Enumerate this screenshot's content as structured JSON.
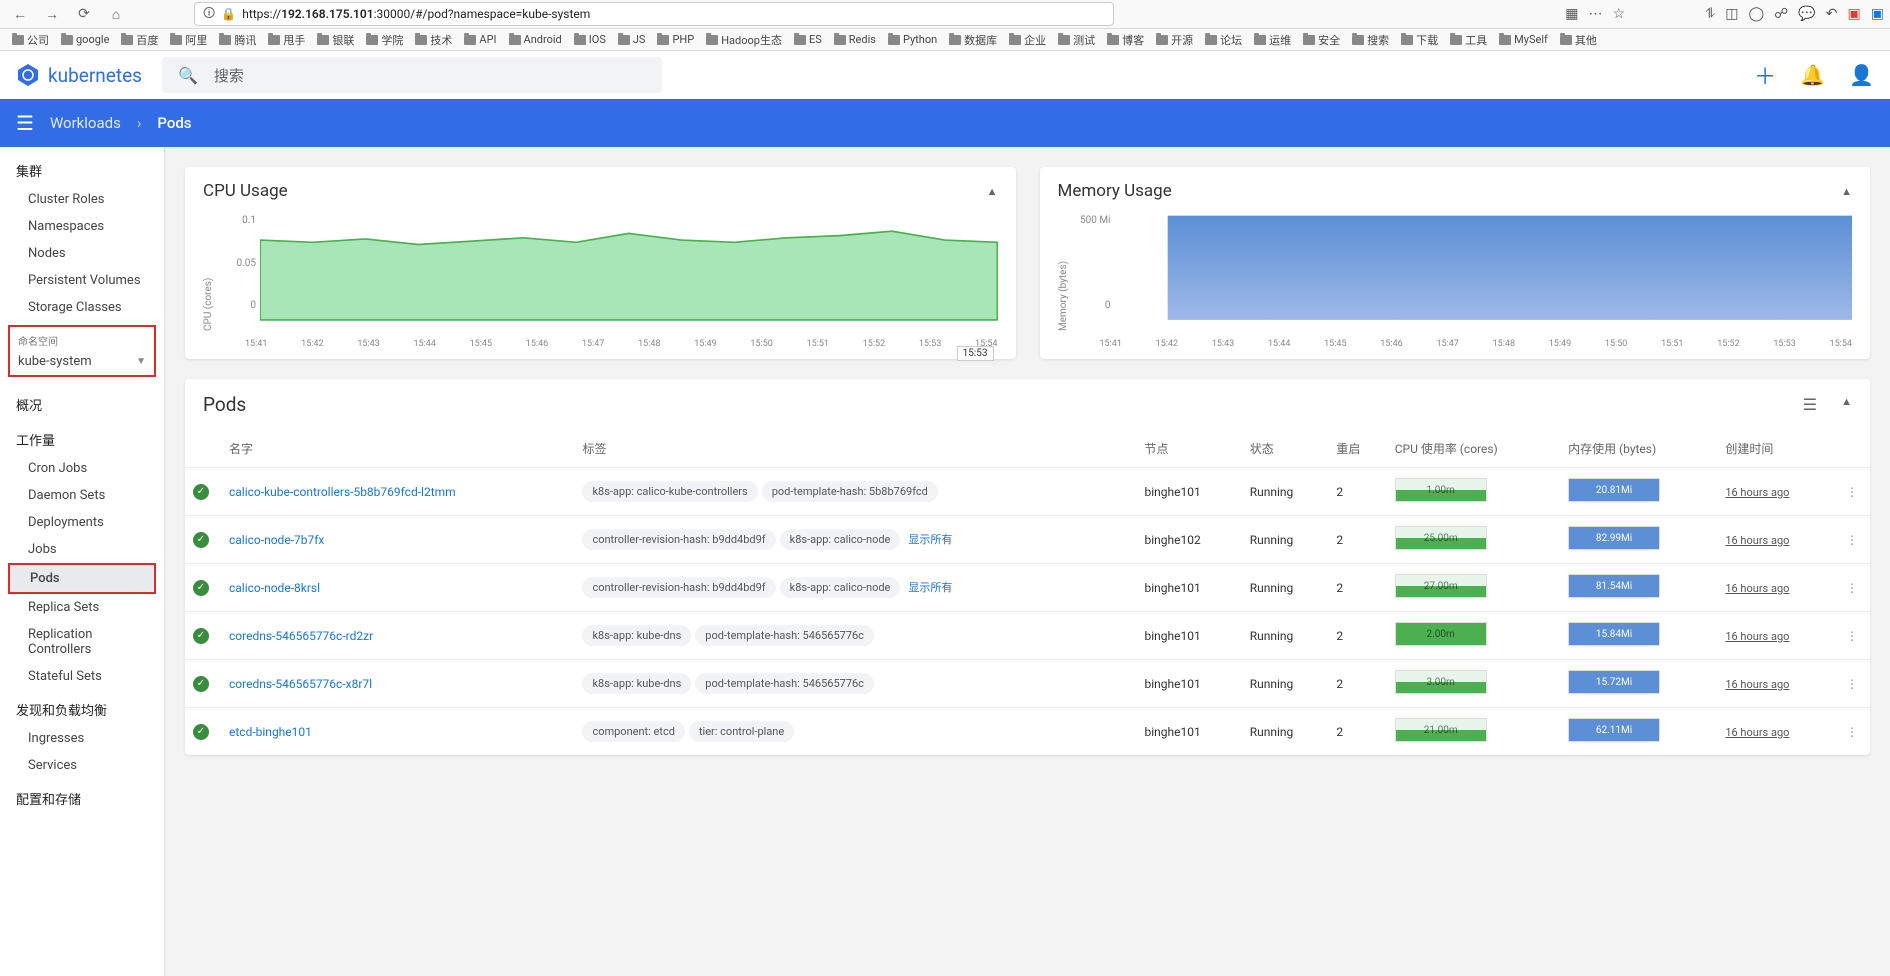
{
  "browser": {
    "url_prefix": "https://",
    "url_host": "192.168.175.101",
    "url_rest": ":30000/#/pod?namespace=kube-system",
    "bookmarks": [
      "公司",
      "google",
      "百度",
      "阿里",
      "腾讯",
      "甩手",
      "银联",
      "学院",
      "技术",
      "API",
      "Android",
      "IOS",
      "JS",
      "PHP",
      "Hadoop生态",
      "ES",
      "Redis",
      "Python",
      "数据库",
      "企业",
      "测试",
      "博客",
      "开源",
      "论坛",
      "运维",
      "安全",
      "搜索",
      "下载",
      "工具",
      "MySelf",
      "其他"
    ]
  },
  "header": {
    "brand": "kubernetes",
    "search_placeholder": "搜索"
  },
  "breadcrumb": {
    "parent": "Workloads",
    "current": "Pods"
  },
  "sidebar": {
    "cluster_header": "集群",
    "cluster_items": [
      "Cluster Roles",
      "Namespaces",
      "Nodes",
      "Persistent Volumes",
      "Storage Classes"
    ],
    "ns_label": "命名空间",
    "ns_value": "kube-system",
    "overview": "概况",
    "workloads_header": "工作量",
    "workloads_items": [
      "Cron Jobs",
      "Daemon Sets",
      "Deployments",
      "Jobs",
      "Pods",
      "Replica Sets",
      "Replication Controllers",
      "Stateful Sets"
    ],
    "discovery_header": "发现和负载均衡",
    "discovery_items": [
      "Ingresses",
      "Services"
    ],
    "config_header": "配置和存储"
  },
  "charts": {
    "cpu": {
      "title": "CPU Usage",
      "y_label": "CPU (cores)",
      "y_ticks": [
        "0.1",
        "0.05",
        "0"
      ],
      "color": "#6fcf97",
      "fill": "#a8e6b8",
      "tooltip": "15:53"
    },
    "mem": {
      "title": "Memory Usage",
      "y_label": "Memory (bytes)",
      "y_ticks": [
        "500 Mi",
        "0"
      ],
      "color": "#6a8fd8",
      "fill": "#8fa9e0"
    },
    "x_ticks": [
      "15:41",
      "15:42",
      "15:43",
      "15:44",
      "15:45",
      "15:46",
      "15:47",
      "15:48",
      "15:49",
      "15:50",
      "15:51",
      "15:52",
      "15:53",
      "15:54"
    ]
  },
  "pods": {
    "title": "Pods",
    "cols": [
      "名字",
      "标签",
      "节点",
      "状态",
      "重启",
      "CPU 使用率 (cores)",
      "内存使用 (bytes)",
      "创建时间"
    ],
    "show_all": "显示所有",
    "rows": [
      {
        "name": "calico-kube-controllers-5b8b769fcd-l2tmm",
        "labels": [
          "k8s-app: calico-kube-controllers",
          "pod-template-hash: 5b8b769fcd"
        ],
        "node": "binghe101",
        "status": "Running",
        "restarts": "2",
        "cpu": "1.00m",
        "cpu_full": false,
        "mem": "20.81Mi",
        "time": "16 hours ago"
      },
      {
        "name": "calico-node-7b7fx",
        "labels": [
          "controller-revision-hash: b9dd4bd9f",
          "k8s-app: calico-node"
        ],
        "show_all": true,
        "node": "binghe102",
        "status": "Running",
        "restarts": "2",
        "cpu": "25.00m",
        "cpu_full": false,
        "mem": "82.99Mi",
        "time": "16 hours ago"
      },
      {
        "name": "calico-node-8krsl",
        "labels": [
          "controller-revision-hash: b9dd4bd9f",
          "k8s-app: calico-node"
        ],
        "show_all": true,
        "node": "binghe101",
        "status": "Running",
        "restarts": "2",
        "cpu": "27.00m",
        "cpu_full": false,
        "mem": "81.54Mi",
        "time": "16 hours ago"
      },
      {
        "name": "coredns-546565776c-rd2zr",
        "labels": [
          "k8s-app: kube-dns",
          "pod-template-hash: 546565776c"
        ],
        "node": "binghe101",
        "status": "Running",
        "restarts": "2",
        "cpu": "2.00m",
        "cpu_full": true,
        "mem": "15.84Mi",
        "time": "16 hours ago"
      },
      {
        "name": "coredns-546565776c-x8r7l",
        "labels": [
          "k8s-app: kube-dns",
          "pod-template-hash: 546565776c"
        ],
        "node": "binghe101",
        "status": "Running",
        "restarts": "2",
        "cpu": "3.00m",
        "cpu_full": false,
        "mem": "15.72Mi",
        "time": "16 hours ago"
      },
      {
        "name": "etcd-binghe101",
        "labels": [
          "component: etcd",
          "tier: control-plane"
        ],
        "node": "binghe101",
        "status": "Running",
        "restarts": "2",
        "cpu": "21.00m",
        "cpu_full": false,
        "mem": "62.11Mi",
        "time": "16 hours ago"
      }
    ]
  }
}
